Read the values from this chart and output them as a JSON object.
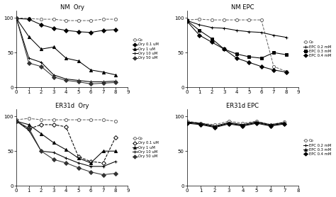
{
  "nm_ory": {
    "title": "NM  Ory",
    "x": [
      0,
      1,
      2,
      3,
      4,
      5,
      6,
      7,
      8
    ],
    "series": {
      "Co": [
        100,
        99,
        98,
        98,
        96,
        96,
        96,
        98,
        98
      ],
      "Ory 0.1 uM": [
        99,
        98,
        90,
        85,
        82,
        80,
        79,
        82,
        83
      ],
      "Ory 1 uM": [
        99,
        73,
        55,
        58,
        42,
        38,
        25,
        22,
        18
      ],
      "Ory 10 uM": [
        99,
        42,
        36,
        18,
        12,
        10,
        8,
        8,
        9
      ],
      "Ory 50 uM": [
        99,
        35,
        30,
        15,
        10,
        8,
        5,
        6,
        7
      ]
    },
    "markers": [
      "o",
      "D",
      "^",
      "+",
      "D"
    ],
    "styles": [
      "--",
      "-",
      "-",
      "-",
      "-"
    ],
    "colors": [
      "#666666",
      "#000000",
      "#000000",
      "#000000",
      "#333333"
    ],
    "fillstyles": [
      "none",
      "full",
      "full",
      "none",
      "full"
    ]
  },
  "nm_epc": {
    "title": "NM EPC",
    "x": [
      0,
      1,
      2,
      3,
      4,
      5,
      6,
      7,
      8
    ],
    "series": {
      "Co": [
        97,
        98,
        97,
        97,
        97,
        97,
        97,
        30,
        23
      ],
      "EPC 0.2 mM": [
        96,
        90,
        86,
        85,
        82,
        80,
        79,
        75,
        72
      ],
      "EPC 0.3 mM": [
        96,
        82,
        70,
        55,
        48,
        44,
        42,
        50,
        47
      ],
      "EPC 0.4 mM": [
        95,
        75,
        65,
        55,
        42,
        36,
        30,
        25,
        22
      ]
    },
    "markers": [
      "o",
      "+",
      "s",
      "D"
    ],
    "styles": [
      "--",
      "-",
      "-",
      "-"
    ],
    "colors": [
      "#666666",
      "#000000",
      "#000000",
      "#000000"
    ],
    "fillstyles": [
      "none",
      "full",
      "full",
      "full"
    ]
  },
  "er31d_ory": {
    "title": "ER31d  Ory",
    "x": [
      0,
      1,
      2,
      3,
      4,
      5,
      6,
      7,
      8
    ],
    "series": {
      "Co": [
        95,
        97,
        95,
        95,
        95,
        95,
        95,
        95,
        93
      ],
      "Ory 0.1uM": [
        93,
        82,
        88,
        88,
        85,
        42,
        35,
        33,
        70
      ],
      "Ory 1  uM": [
        93,
        88,
        75,
        62,
        52,
        40,
        33,
        50,
        50
      ],
      "Ory 10 uM": [
        93,
        80,
        50,
        48,
        40,
        33,
        28,
        28,
        35
      ],
      "Ory 50 uM": [
        93,
        83,
        50,
        38,
        33,
        26,
        20,
        16,
        18
      ]
    },
    "markers": [
      "o",
      "D",
      "^",
      "+",
      "D"
    ],
    "styles": [
      "--",
      "--",
      "-",
      "-",
      "-"
    ],
    "colors": [
      "#666666",
      "#000000",
      "#000000",
      "#000000",
      "#333333"
    ],
    "fillstyles": [
      "none",
      "none",
      "full",
      "none",
      "full"
    ]
  },
  "er31d_epc": {
    "title": "ER31d EPC",
    "x": [
      0,
      1,
      2,
      3,
      4,
      5,
      6,
      7
    ],
    "series": {
      "Co": [
        93,
        90,
        88,
        93,
        90,
        93,
        88,
        92
      ],
      "EPC 0.2 mM": [
        92,
        90,
        86,
        91,
        88,
        92,
        88,
        91
      ],
      "EPC 0.3 mM": [
        91,
        89,
        85,
        90,
        87,
        91,
        87,
        90
      ],
      "EPC 0.4 mM": [
        90,
        88,
        84,
        89,
        86,
        90,
        86,
        89
      ]
    },
    "markers": [
      "o",
      "+",
      "^",
      "D"
    ],
    "styles": [
      "--",
      "-",
      "-",
      "-"
    ],
    "colors": [
      "#666666",
      "#000000",
      "#000000",
      "#000000"
    ],
    "fillstyles": [
      "none",
      "full",
      "full",
      "full"
    ]
  },
  "legend_ory": [
    "Co",
    "Ory 0.1 uM",
    "Ory 1 uM",
    "Ory 10 uM",
    "Ory 50 uM"
  ],
  "legend_epc": [
    "Co",
    "EPC 0.2 mM",
    "EPC 0.3 mM",
    "EPC 0.4 mM"
  ],
  "xlim": [
    0,
    9
  ],
  "ylim": [
    0,
    110
  ],
  "yticks": [
    0,
    50,
    100
  ],
  "xticks": [
    0,
    1,
    2,
    3,
    4,
    5,
    6,
    7,
    8,
    9
  ],
  "er31d_epc_xlim": [
    0,
    8
  ],
  "er31d_epc_xticks": [
    0,
    1,
    2,
    3,
    4,
    5,
    6,
    7,
    8
  ]
}
